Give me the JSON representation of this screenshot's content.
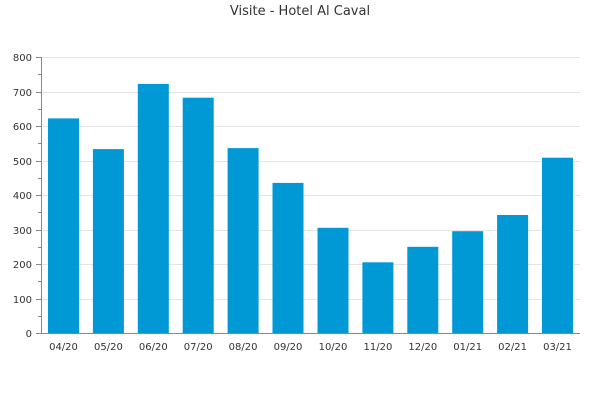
{
  "chart_data": {
    "type": "bar",
    "title": "Visite - Hotel Al Caval",
    "xlabel": "",
    "ylabel": "",
    "categories": [
      "04/20",
      "05/20",
      "06/20",
      "07/20",
      "08/20",
      "09/20",
      "10/20",
      "11/20",
      "12/20",
      "01/21",
      "02/21",
      "03/21"
    ],
    "values": [
      622,
      533,
      722,
      682,
      536,
      435,
      305,
      205,
      250,
      295,
      342,
      508
    ],
    "ylim": [
      0,
      800
    ],
    "yticks": [
      0,
      100,
      200,
      300,
      400,
      500,
      600,
      700,
      800
    ],
    "grid": true,
    "legend": "none",
    "bar_color": "#0099d6"
  }
}
